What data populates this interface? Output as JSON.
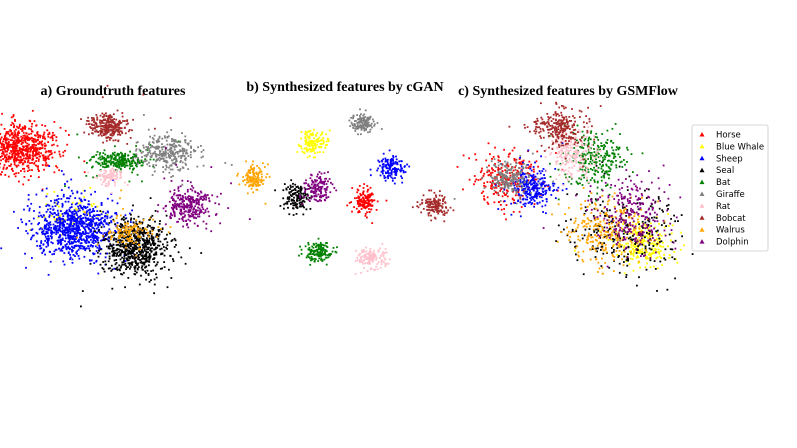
{
  "chart_data": {
    "type": "scatter",
    "panels": [
      {
        "title": "a) Groundtruth features",
        "clusters": [
          {
            "cls": "Horse",
            "center": [
              20,
              148
            ],
            "spread": [
              17,
              12
            ],
            "count": 700
          },
          {
            "cls": "Blue Whale",
            "center": [
              72,
              213
            ],
            "spread": [
              16,
              10
            ],
            "count": 60
          },
          {
            "cls": "Sheep",
            "center": [
              74,
              228
            ],
            "spread": [
              20,
              14
            ],
            "count": 900
          },
          {
            "cls": "Seal",
            "center": [
              136,
              247
            ],
            "spread": [
              15,
              14
            ],
            "count": 700
          },
          {
            "cls": "Bat",
            "center": [
              117,
              160
            ],
            "spread": [
              13,
              5
            ],
            "count": 250
          },
          {
            "cls": "Giraffe",
            "center": [
              167,
              152
            ],
            "spread": [
              14,
              9
            ],
            "count": 300
          },
          {
            "cls": "Rat",
            "center": [
              110,
              177
            ],
            "spread": [
              6,
              4
            ],
            "count": 90
          },
          {
            "cls": "Bobcat",
            "center": [
              108,
              126
            ],
            "spread": [
              9,
              6
            ],
            "count": 280
          },
          {
            "cls": "Walrus",
            "center": [
              127,
              232
            ],
            "spread": [
              12,
              7
            ],
            "count": 120
          },
          {
            "cls": "Dolphin",
            "center": [
              189,
              205
            ],
            "spread": [
              11,
              9
            ],
            "count": 300
          }
        ]
      },
      {
        "title": "b) Synthesized features by cGAN",
        "clusters": [
          {
            "cls": "Horse",
            "center": [
              365,
              200
            ],
            "spread": [
              6,
              7
            ],
            "count": 140
          },
          {
            "cls": "Blue Whale",
            "center": [
              313,
              143
            ],
            "spread": [
              7,
              6
            ],
            "count": 140
          },
          {
            "cls": "Sheep",
            "center": [
              392,
              168
            ],
            "spread": [
              7,
              6
            ],
            "count": 140
          },
          {
            "cls": "Seal",
            "center": [
              297,
              197
            ],
            "spread": [
              7,
              7
            ],
            "count": 140
          },
          {
            "cls": "Bat",
            "center": [
              318,
              253
            ],
            "spread": [
              7,
              5
            ],
            "count": 140
          },
          {
            "cls": "Giraffe",
            "center": [
              362,
              123
            ],
            "spread": [
              6,
              5
            ],
            "count": 140
          },
          {
            "cls": "Rat",
            "center": [
              372,
              258
            ],
            "spread": [
              7,
              5
            ],
            "count": 140
          },
          {
            "cls": "Bobcat",
            "center": [
              434,
              205
            ],
            "spread": [
              7,
              6
            ],
            "count": 140
          },
          {
            "cls": "Walrus",
            "center": [
              254,
              178
            ],
            "spread": [
              6,
              6
            ],
            "count": 140
          },
          {
            "cls": "Dolphin",
            "center": [
              317,
              188
            ],
            "spread": [
              7,
              7
            ],
            "count": 140
          }
        ]
      },
      {
        "title": "c) Synthesized features by GSMFlow",
        "clusters": [
          {
            "cls": "Horse",
            "center": [
              508,
              178
            ],
            "spread": [
              15,
              14
            ],
            "count": 260
          },
          {
            "cls": "Blue Whale",
            "center": [
              642,
              243
            ],
            "spread": [
              14,
              10
            ],
            "count": 260
          },
          {
            "cls": "Sheep",
            "center": [
              532,
              188
            ],
            "spread": [
              10,
              10
            ],
            "count": 260
          },
          {
            "cls": "Seal",
            "center": [
              625,
              232
            ],
            "spread": [
              27,
              22
            ],
            "count": 260
          },
          {
            "cls": "Bat",
            "center": [
              596,
              160
            ],
            "spread": [
              15,
              14
            ],
            "count": 260
          },
          {
            "cls": "Giraffe",
            "center": [
              508,
              178
            ],
            "spread": [
              10,
              8
            ],
            "count": 200
          },
          {
            "cls": "Rat",
            "center": [
              572,
              155
            ],
            "spread": [
              11,
              10
            ],
            "count": 200
          },
          {
            "cls": "Bobcat",
            "center": [
              558,
              128
            ],
            "spread": [
              13,
              9
            ],
            "count": 260
          },
          {
            "cls": "Walrus",
            "center": [
              607,
              230
            ],
            "spread": [
              18,
              17
            ],
            "count": 260
          },
          {
            "cls": "Dolphin",
            "center": [
              630,
              215
            ],
            "spread": [
              18,
              17
            ],
            "count": 260
          }
        ]
      }
    ],
    "legend": {
      "placement": "right",
      "entries": [
        {
          "label": "Horse",
          "color": "#ff0000"
        },
        {
          "label": "Blue Whale",
          "color": "#ffff00"
        },
        {
          "label": "Sheep",
          "color": "#0000ff"
        },
        {
          "label": "Seal",
          "color": "#000000"
        },
        {
          "label": "Bat",
          "color": "#008000"
        },
        {
          "label": "Giraffe",
          "color": "#808080"
        },
        {
          "label": "Rat",
          "color": "#ffc0cb"
        },
        {
          "label": "Bobcat",
          "color": "#a52a2a"
        },
        {
          "label": "Walrus",
          "color": "#ffa500"
        },
        {
          "label": "Dolphin",
          "color": "#800080"
        }
      ]
    }
  }
}
